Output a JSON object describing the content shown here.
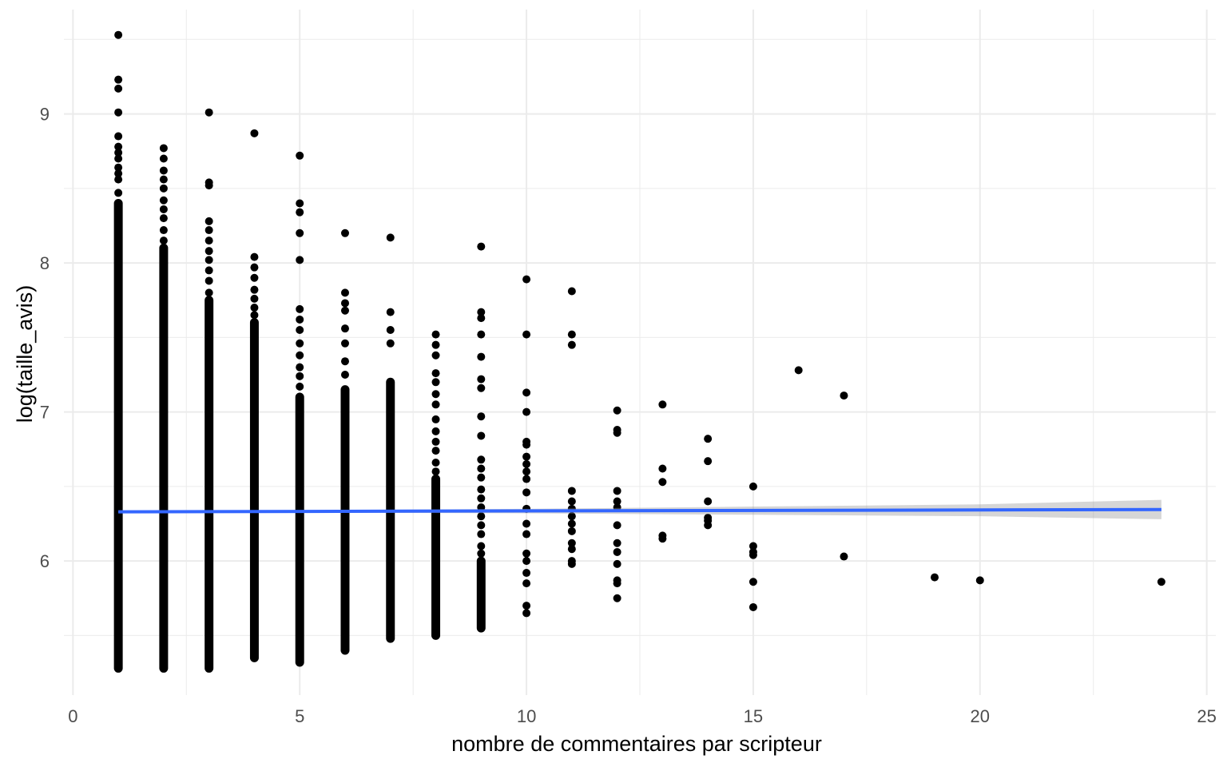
{
  "chart_data": {
    "type": "scatter",
    "title": "",
    "xlabel": "nombre de commentaires par scripteur",
    "ylabel": "log(taille_avis)",
    "xlim": [
      -0.2,
      25.2
    ],
    "ylim": [
      5.1,
      9.7
    ],
    "grid": true,
    "legend": "none",
    "x_ticks": [
      0,
      5,
      10,
      15,
      20,
      25
    ],
    "x_tick_labels": [
      "0",
      "5",
      "10",
      "15",
      "20",
      "25"
    ],
    "y_ticks": [
      6,
      7,
      8,
      9
    ],
    "y_tick_labels": [
      "6",
      "7",
      "8",
      "9"
    ],
    "columns": [
      {
        "x": 1,
        "min": 5.28,
        "dense_max": 8.4,
        "outliers": [
          8.47,
          8.56,
          8.6,
          8.64,
          8.7,
          8.74,
          8.78,
          8.85,
          9.01,
          9.17,
          9.23,
          9.53
        ]
      },
      {
        "x": 2,
        "min": 5.28,
        "dense_max": 8.1,
        "outliers": [
          8.15,
          8.22,
          8.3,
          8.36,
          8.42,
          8.5,
          8.56,
          8.62,
          8.7,
          8.77
        ]
      },
      {
        "x": 3,
        "min": 5.28,
        "dense_max": 7.75,
        "outliers": [
          7.8,
          7.88,
          7.95,
          8.02,
          8.08,
          8.15,
          8.22,
          8.28,
          8.52,
          8.54,
          9.01
        ]
      },
      {
        "x": 4,
        "min": 5.35,
        "dense_max": 7.6,
        "outliers": [
          7.65,
          7.7,
          7.76,
          7.82,
          7.9,
          7.97,
          8.04,
          8.87
        ]
      },
      {
        "x": 5,
        "min": 5.32,
        "dense_max": 7.1,
        "outliers": [
          7.17,
          7.24,
          7.3,
          7.38,
          7.46,
          7.55,
          7.62,
          7.69,
          8.02,
          8.2,
          8.34,
          8.4,
          8.72
        ]
      },
      {
        "x": 6,
        "min": 5.4,
        "dense_max": 7.15,
        "outliers": [
          7.25,
          7.34,
          7.46,
          7.56,
          7.68,
          7.73,
          7.8,
          8.2
        ]
      },
      {
        "x": 7,
        "min": 5.48,
        "dense_max": 7.2,
        "outliers": [
          7.46,
          7.55,
          7.67,
          8.17
        ]
      },
      {
        "x": 8,
        "min": 5.5,
        "dense_max": 6.55,
        "outliers": [
          6.6,
          6.66,
          6.74,
          6.8,
          6.87,
          6.95,
          7.05,
          7.12,
          7.2,
          7.26,
          7.38,
          7.45,
          7.52
        ]
      },
      {
        "x": 9,
        "min": 5.55,
        "dense_max": 6.0,
        "outliers": [
          6.05,
          6.1,
          6.18,
          6.24,
          6.3,
          6.36,
          6.42,
          6.48,
          6.56,
          6.62,
          6.68,
          6.84,
          6.97,
          7.16,
          7.22,
          7.37,
          7.52,
          7.63,
          7.67,
          8.11,
          5.7,
          5.63
        ]
      },
      {
        "x": 10,
        "min": 5.65,
        "dense_max": null,
        "outliers": [
          5.65,
          5.7,
          5.85,
          5.92,
          6.0,
          6.05,
          6.18,
          6.25,
          6.35,
          6.46,
          6.55,
          6.6,
          6.65,
          6.7,
          6.78,
          6.8,
          7.0,
          7.13,
          7.52,
          7.89
        ]
      },
      {
        "x": 11,
        "min": 5.98,
        "dense_max": null,
        "outliers": [
          5.98,
          6.0,
          6.08,
          6.12,
          6.2,
          6.25,
          6.3,
          6.35,
          6.4,
          6.47,
          7.45,
          7.52,
          7.81
        ]
      },
      {
        "x": 12,
        "min": 5.75,
        "dense_max": null,
        "outliers": [
          5.75,
          5.85,
          5.87,
          5.98,
          6.06,
          6.12,
          6.24,
          6.36,
          6.4,
          6.47,
          6.86,
          6.88,
          7.01
        ]
      },
      {
        "x": 13,
        "min": 6.15,
        "dense_max": null,
        "outliers": [
          6.15,
          6.17,
          6.53,
          6.62,
          7.05
        ]
      },
      {
        "x": 14,
        "min": 6.24,
        "dense_max": null,
        "outliers": [
          6.24,
          6.27,
          6.29,
          6.4,
          6.67,
          6.82
        ]
      },
      {
        "x": 15,
        "min": 5.69,
        "dense_max": null,
        "outliers": [
          5.69,
          5.86,
          6.04,
          6.06,
          6.1,
          6.5
        ]
      },
      {
        "x": 16,
        "min": 7.28,
        "dense_max": null,
        "outliers": [
          7.28
        ]
      },
      {
        "x": 17,
        "min": 6.03,
        "dense_max": null,
        "outliers": [
          6.03,
          7.11
        ]
      },
      {
        "x": 19,
        "min": 5.89,
        "dense_max": null,
        "outliers": [
          5.89
        ]
      },
      {
        "x": 20,
        "min": 5.87,
        "dense_max": null,
        "outliers": [
          5.87
        ]
      },
      {
        "x": 24,
        "min": 5.86,
        "dense_max": null,
        "outliers": [
          5.86
        ]
      }
    ],
    "trend": {
      "method": "lm",
      "color": "#3366FF",
      "x": [
        1,
        24
      ],
      "y": [
        6.33,
        6.345
      ],
      "se_band": [
        {
          "x": 1,
          "lo": 6.32,
          "hi": 6.34
        },
        {
          "x": 5,
          "lo": 6.325,
          "hi": 6.34
        },
        {
          "x": 10,
          "lo": 6.32,
          "hi": 6.35
        },
        {
          "x": 15,
          "lo": 6.31,
          "hi": 6.365
        },
        {
          "x": 20,
          "lo": 6.3,
          "hi": 6.38
        },
        {
          "x": 24,
          "lo": 6.28,
          "hi": 6.41
        }
      ]
    },
    "colors": {
      "points": "#000000",
      "trend": "#3366FF",
      "band": "#999999",
      "grid": "#ebebeb"
    }
  }
}
